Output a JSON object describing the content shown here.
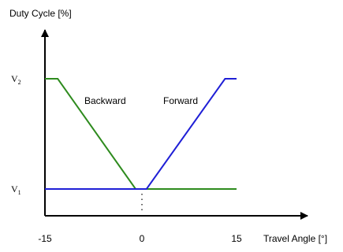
{
  "chart_data": {
    "type": "line",
    "ylabel": "Duty Cycle [%]",
    "xlabel": "Travel Angle [°]",
    "x_ticks": [
      {
        "value": -15,
        "label": "-15"
      },
      {
        "value": 0,
        "label": "0"
      },
      {
        "value": 15,
        "label": "15"
      }
    ],
    "y_levels": [
      {
        "key": "V1",
        "label": "V",
        "sub": "1",
        "value": 1
      },
      {
        "key": "V2",
        "label": "V",
        "sub": "2",
        "value": 2
      }
    ],
    "xlim": [
      -15,
      15
    ],
    "ylim": [
      1,
      2
    ],
    "series": [
      {
        "name": "Backward",
        "color": "#2e8b1e",
        "points": [
          [
            -15,
            2
          ],
          [
            -13,
            2
          ],
          [
            -0.8,
            1
          ],
          [
            15,
            1
          ]
        ]
      },
      {
        "name": "Forward",
        "color": "#1f1fd6",
        "points": [
          [
            -15,
            1
          ],
          [
            0.9,
            1
          ],
          [
            13.2,
            2
          ],
          [
            15,
            2
          ]
        ]
      }
    ]
  }
}
